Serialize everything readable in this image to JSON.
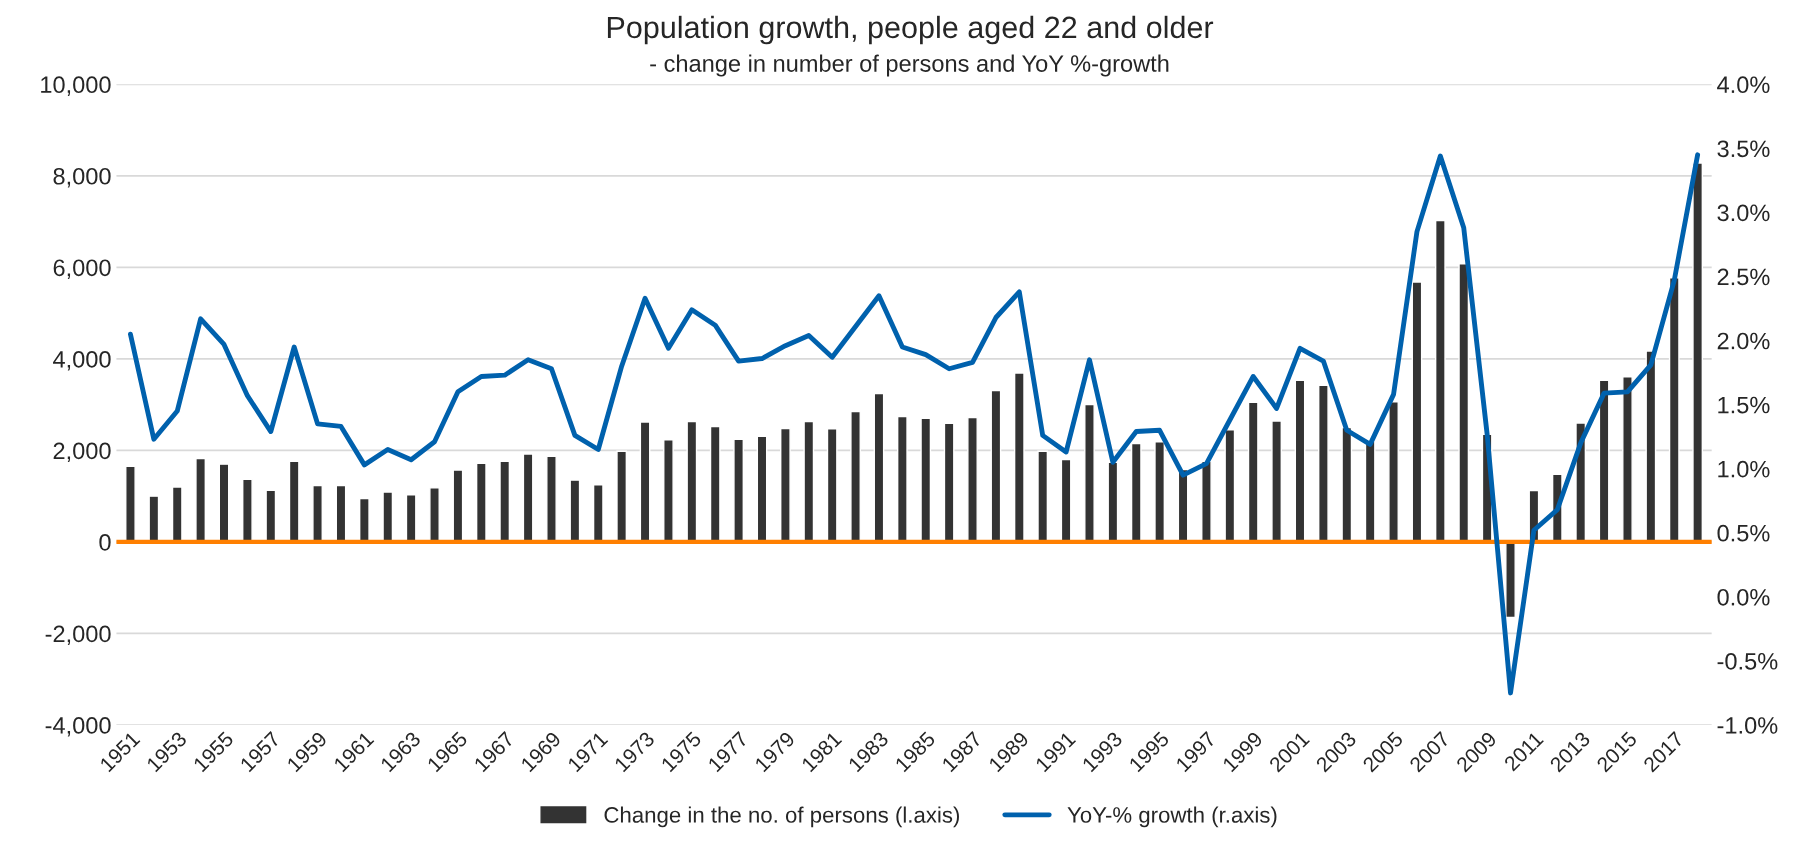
{
  "chart_data": {
    "type": "bar",
    "title": "Population growth, people aged 22 and older",
    "subtitle": "- change in number of persons and YoY %-growth",
    "categories": [
      "1951",
      null,
      "1953",
      null,
      "1955",
      null,
      "1957",
      null,
      "1959",
      null,
      "1961",
      null,
      "1963",
      null,
      "1965",
      null,
      "1967",
      null,
      "1969",
      null,
      "1971",
      null,
      "1973",
      null,
      "1975",
      null,
      "1977",
      null,
      "1979",
      null,
      "1981",
      null,
      "1983",
      null,
      "1985",
      null,
      "1987",
      null,
      "1989",
      null,
      "1991",
      null,
      "1993",
      null,
      "1995",
      null,
      "1997",
      null,
      "1999",
      null,
      "2001",
      null,
      "2003",
      null,
      "2005",
      null,
      "2007",
      null,
      "2009",
      null,
      "2011",
      null,
      "2013",
      null,
      "2015",
      null,
      "2017",
      null
    ],
    "series": [
      {
        "name": "Change in the no. of persons (l.axis)",
        "color": "#333333",
        "values": [
          1650,
          1000,
          1200,
          1820,
          1700,
          1370,
          1130,
          1760,
          1230,
          1230,
          950,
          1090,
          1030,
          1180,
          1570,
          1720,
          1760,
          1920,
          1870,
          1350,
          1250,
          1980,
          2620,
          2230,
          2630,
          2520,
          2240,
          2310,
          2480,
          2630,
          2470,
          2850,
          3240,
          2740,
          2700,
          2590,
          2720,
          3310,
          3690,
          1980,
          1800,
          3000,
          1740,
          2150,
          2190,
          1580,
          1760,
          2450,
          3050,
          2640,
          3530,
          3420,
          2500,
          2200,
          3060,
          5680,
          7020,
          6080,
          2350,
          -1650,
          1120,
          1480,
          2600,
          3530,
          3610,
          4170,
          5770,
          8280
        ]
      },
      {
        "name": "YoY-% growth (r.axis)",
        "type": "line",
        "axis": "y2",
        "color": "#0061ad",
        "values": [
          2.05,
          1.23,
          1.45,
          2.17,
          1.97,
          1.57,
          1.29,
          1.95,
          1.35,
          1.33,
          1.03,
          1.15,
          1.07,
          1.21,
          1.6,
          1.72,
          1.73,
          1.85,
          1.78,
          1.26,
          1.15,
          1.8,
          2.33,
          1.94,
          2.24,
          2.12,
          1.84,
          1.86,
          1.96,
          2.04,
          1.87,
          2.11,
          2.35,
          1.95,
          1.89,
          1.78,
          1.83,
          2.18,
          2.38,
          1.26,
          1.13,
          1.85,
          1.05,
          1.29,
          1.3,
          0.95,
          1.04,
          1.38,
          1.72,
          1.47,
          1.94,
          1.84,
          1.3,
          1.19,
          1.58,
          2.85,
          3.44,
          2.88,
          1.27,
          -0.75,
          0.52,
          0.68,
          1.2,
          1.59,
          1.6,
          1.81,
          2.47,
          3.45
        ]
      }
    ],
    "ylim": [
      -4000,
      10000
    ],
    "yticks": [
      {
        "value": -4000,
        "label": "-4,000"
      },
      {
        "value": -2000,
        "label": "-2,000"
      },
      0,
      {
        "value": 2000,
        "label": "2,000"
      },
      {
        "value": 4000,
        "label": "4,000"
      },
      {
        "value": 6000,
        "label": "6,000"
      },
      {
        "value": 8000,
        "label": "8,000"
      },
      {
        "value": 10000,
        "label": "10,000"
      }
    ],
    "y2lim": [
      -1.0,
      4.0
    ],
    "y2ticks": [
      {
        "value": -1.0,
        "label": "-1.0%"
      },
      {
        "value": -0.5,
        "label": "-0.5%"
      },
      {
        "value": 0.0,
        "label": "0.0%"
      },
      {
        "value": 0.5,
        "label": "0.5%"
      },
      {
        "value": 1.0,
        "label": "1.0%"
      },
      {
        "value": 1.5,
        "label": "1.5%"
      },
      {
        "value": 2.0,
        "label": "2.0%"
      },
      {
        "value": 2.5,
        "label": "2.5%"
      },
      {
        "value": 3.0,
        "label": "3.0%"
      },
      {
        "value": 3.5,
        "label": "3.5%"
      },
      {
        "value": 4.0,
        "label": "4.0%"
      }
    ],
    "ref_lines": [
      {
        "axis": "y",
        "value": 0,
        "color": "#ff7f00"
      }
    ],
    "grid": "y",
    "legend": "bottom",
    "marker": "none",
    "line_style": "solid"
  }
}
